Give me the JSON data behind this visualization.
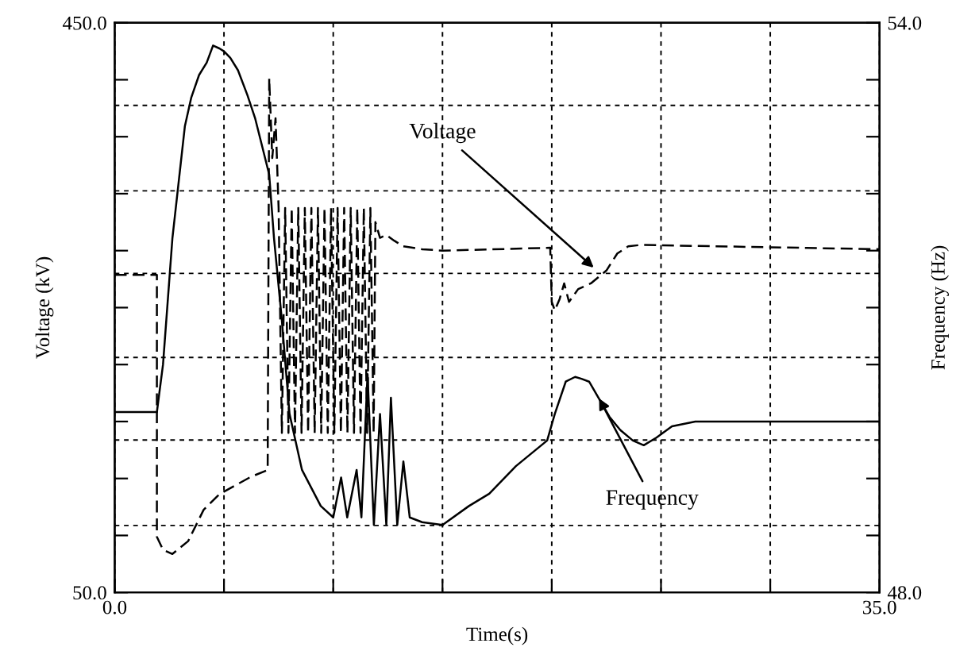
{
  "chart_data": {
    "type": "line",
    "xlabel": "Time(s)",
    "ylabel": "Voltage (kV)",
    "y2label": "Frequency (Hz)",
    "xlim": [
      0,
      35
    ],
    "xticks": [
      {
        "value": 0,
        "label": "0.0"
      },
      {
        "value": 5,
        "label": null
      },
      {
        "value": 10,
        "label": null
      },
      {
        "value": 15,
        "label": null
      },
      {
        "value": 20,
        "label": null
      },
      {
        "value": 25,
        "label": null
      },
      {
        "value": 30,
        "label": null
      },
      {
        "value": 35,
        "label": "35.0"
      }
    ],
    "ylim": [
      50,
      450
    ],
    "yticks": [
      {
        "value": 50,
        "label": "50.0"
      },
      {
        "value": 90,
        "label": null
      },
      {
        "value": 130,
        "label": null
      },
      {
        "value": 170,
        "label": null
      },
      {
        "value": 210,
        "label": null
      },
      {
        "value": 250,
        "label": null
      },
      {
        "value": 290,
        "label": null
      },
      {
        "value": 330,
        "label": null
      },
      {
        "value": 370,
        "label": null
      },
      {
        "value": 410,
        "label": null
      },
      {
        "value": 450,
        "label": "450.0"
      }
    ],
    "y2lim": [
      48,
      54
    ],
    "y2ticks": [
      {
        "value": 48,
        "label": "48.0"
      },
      {
        "value": 48.6,
        "label": null
      },
      {
        "value": 49.2,
        "label": null
      },
      {
        "value": 49.8,
        "label": null
      },
      {
        "value": 50.4,
        "label": null
      },
      {
        "value": 51,
        "label": null
      },
      {
        "value": 51.6,
        "label": null
      },
      {
        "value": 52.2,
        "label": null
      },
      {
        "value": 52.8,
        "label": null
      },
      {
        "value": 53.4,
        "label": null
      },
      {
        "value": 54,
        "label": "54.0"
      }
    ],
    "grid": "x",
    "legend": false,
    "marker": "none",
    "ref_lines": [
      {
        "axis": "y",
        "value": 97,
        "line_style": "dotted"
      },
      {
        "axis": "y",
        "value": 157,
        "line_style": "dotted"
      },
      {
        "axis": "y",
        "value": 215,
        "line_style": "dotted"
      },
      {
        "axis": "y",
        "value": 274,
        "line_style": "dotted"
      },
      {
        "axis": "y",
        "value": 332,
        "line_style": "dotted"
      },
      {
        "axis": "y",
        "value": 392,
        "line_style": "dotted"
      }
    ],
    "annotations": [
      {
        "text": "Voltage",
        "x": 22.07,
        "y": 276
      },
      {
        "text": "Frequency",
        "x": 22.07,
        "y": 189
      }
    ],
    "series": [
      {
        "color": "#000000",
        "line_style": "dashed",
        "x": [
          0,
          1.93,
          1.93,
          2.21,
          2.64,
          3.36,
          4.07,
          4.79,
          5.5,
          6.21,
          7.0,
          7.07,
          7.21,
          7.36,
          7.5,
          7.65,
          7.8,
          7.95,
          8.1,
          8.25,
          8.4,
          8.55,
          8.7,
          8.85,
          9.0,
          9.15,
          9.3,
          9.45,
          9.6,
          9.75,
          9.9,
          10.05,
          10.2,
          10.35,
          10.5,
          10.65,
          10.8,
          10.95,
          11.1,
          11.25,
          11.4,
          11.55,
          11.7,
          11.85,
          11.93,
          12.14,
          12.43,
          12.79,
          13.21,
          14.07,
          15.0,
          19.93,
          20.0,
          20.14,
          20.36,
          20.57,
          20.79,
          21.21,
          21.79,
          22.5,
          23.0,
          23.5,
          24.07,
          35
        ],
        "values": [
          273,
          273,
          89,
          80,
          77,
          86,
          108,
          119,
          125,
          131,
          136,
          411,
          355,
          383,
          320,
          162,
          320,
          162,
          320,
          162,
          320,
          162,
          320,
          162,
          320,
          162,
          320,
          162,
          320,
          162,
          320,
          162,
          320,
          162,
          320,
          162,
          320,
          162,
          320,
          162,
          320,
          162,
          320,
          162,
          310,
          299,
          301,
          297,
          293,
          291,
          290,
          292,
          254,
          248,
          256,
          267,
          254,
          263,
          267,
          276,
          288,
          293,
          294,
          291
        ]
      },
      {
        "color": "#000000",
        "line_style": "solid",
        "axis": "y2",
        "x": [
          0,
          1.93,
          2.21,
          2.64,
          3.21,
          3.5,
          3.86,
          4.21,
          4.5,
          4.79,
          5.0,
          5.29,
          5.64,
          6.07,
          6.43,
          6.79,
          7.07,
          7.29,
          7.64,
          8.0,
          8.57,
          9.43,
          10.0,
          10.36,
          10.64,
          11.07,
          11.29,
          11.57,
          11.86,
          12.14,
          12.43,
          12.64,
          12.93,
          13.21,
          13.5,
          14.07,
          15.0,
          16.21,
          17.14,
          18.36,
          19.79,
          20.14,
          20.64,
          21.07,
          21.36,
          21.71,
          22.14,
          22.64,
          23.14,
          23.71,
          24.21,
          24.79,
          25.5,
          26.57,
          28.36,
          35.0
        ],
        "values": [
          49.9,
          49.9,
          50.4,
          51.73,
          52.91,
          53.21,
          53.45,
          53.58,
          53.76,
          53.73,
          53.7,
          53.63,
          53.5,
          53.24,
          52.99,
          52.66,
          52.4,
          51.73,
          50.89,
          49.88,
          49.29,
          48.91,
          48.79,
          49.21,
          48.79,
          49.29,
          48.79,
          50.3,
          48.71,
          49.88,
          48.71,
          50.05,
          48.71,
          49.38,
          48.79,
          48.74,
          48.71,
          48.91,
          49.04,
          49.33,
          49.6,
          49.88,
          50.22,
          50.27,
          50.25,
          50.22,
          50.05,
          49.85,
          49.71,
          49.6,
          49.55,
          49.63,
          49.75,
          49.8,
          49.8,
          49.8
        ]
      }
    ]
  }
}
